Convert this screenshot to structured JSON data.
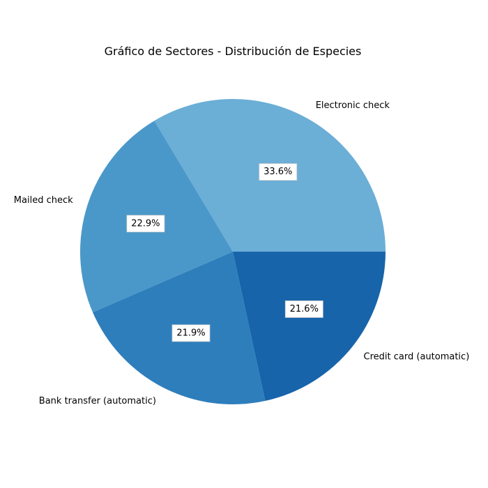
{
  "chart_data": {
    "type": "pie",
    "title": "Gráfico de Sectores - Distribución de Especies",
    "categories": [
      "Electronic check",
      "Mailed check",
      "Bank transfer (automatic)",
      "Credit card (automatic)"
    ],
    "values": [
      33.6,
      22.9,
      21.9,
      21.6
    ],
    "value_labels": [
      "33.6%",
      "22.9%",
      "21.9%",
      "21.6%"
    ],
    "colors": [
      "#6baed6",
      "#4a98c9",
      "#2e7ebc",
      "#1764ab"
    ],
    "start_angle_deg": 0,
    "direction": "counterclockwise",
    "legend": "none"
  }
}
